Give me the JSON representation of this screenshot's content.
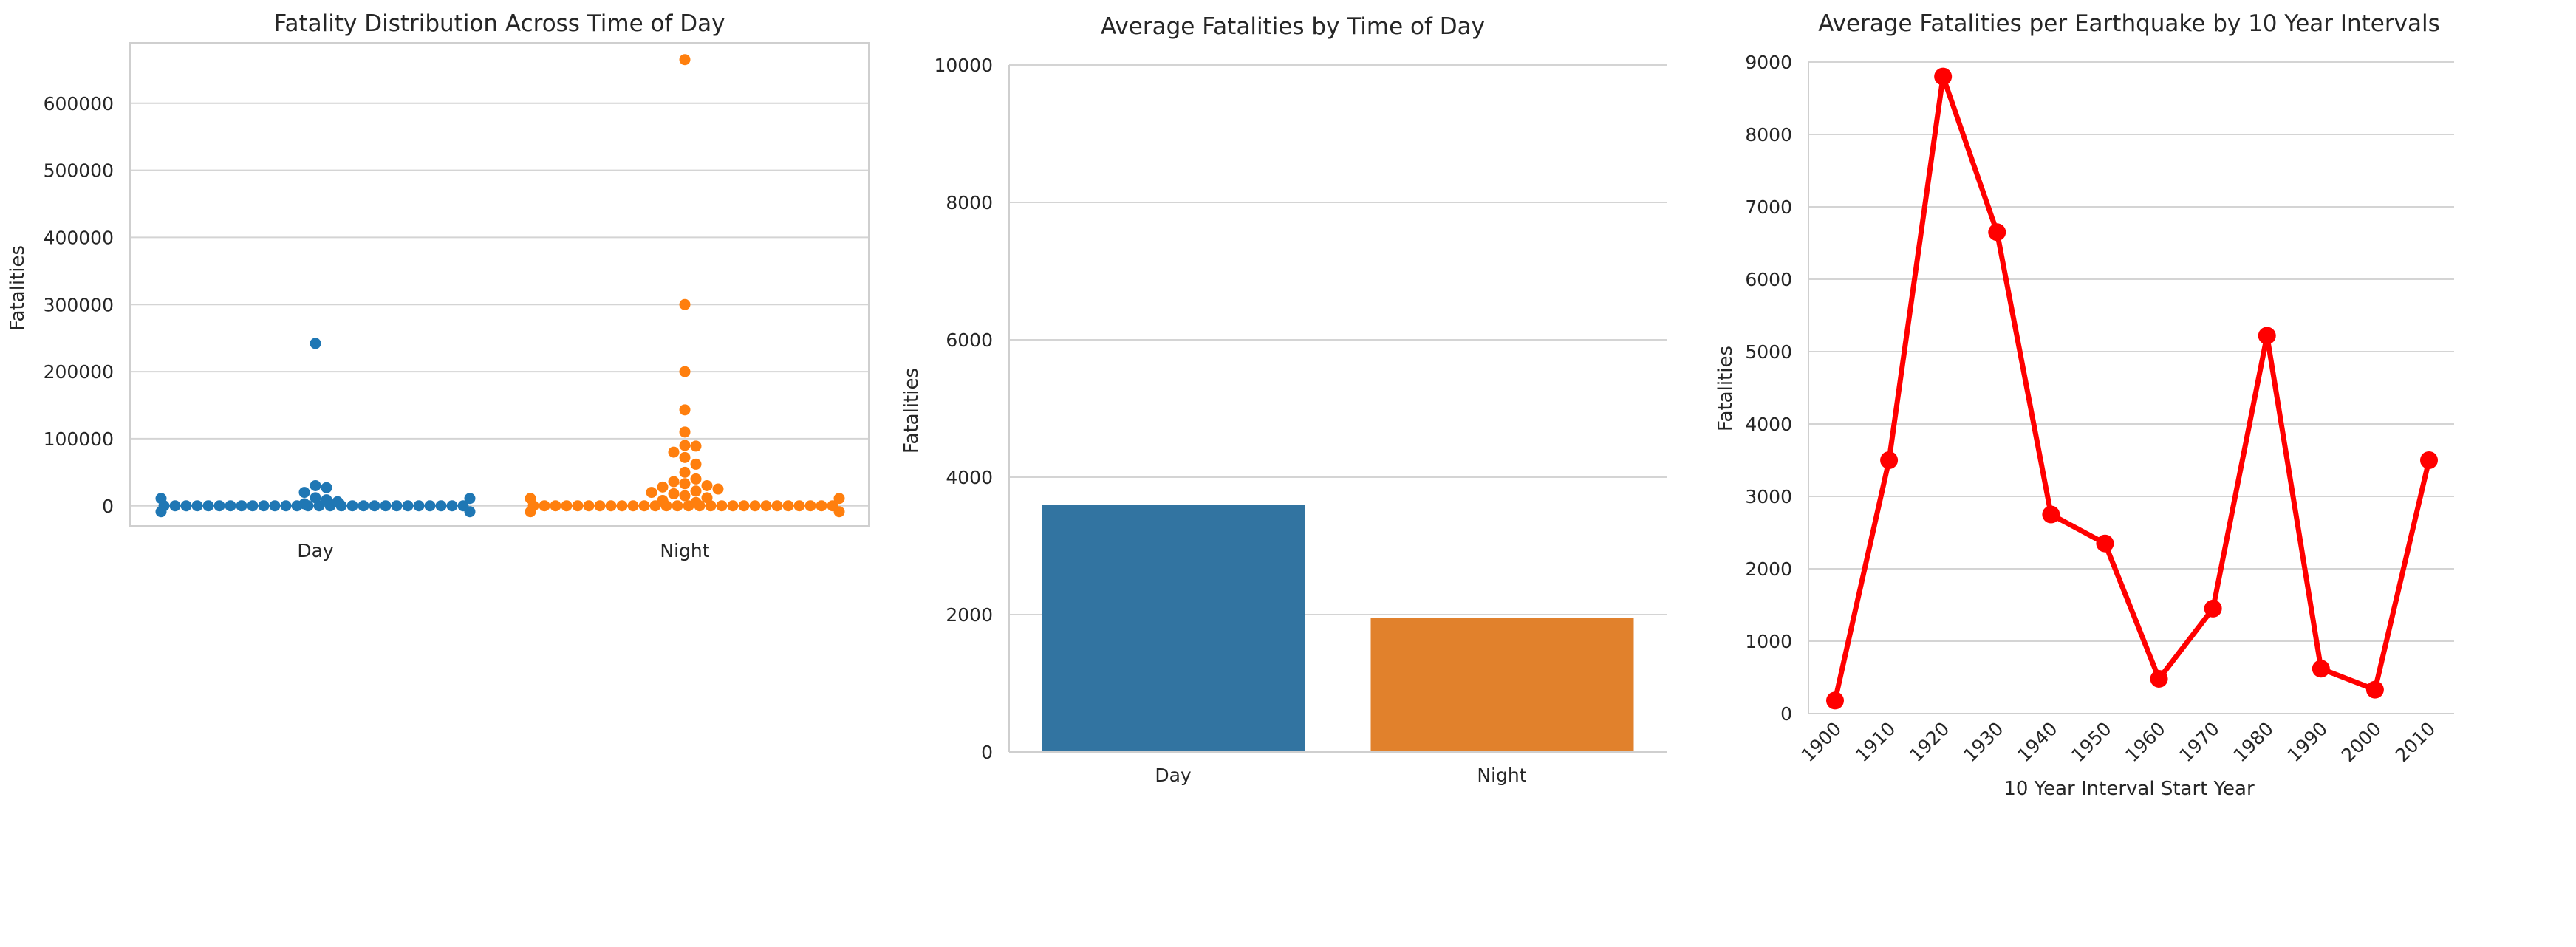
{
  "chart_data": [
    {
      "type": "scatter",
      "subtype": "swarm",
      "title": "Fatality Distribution Across Time of Day",
      "xlabel": "",
      "ylabel": "Fatalities",
      "categories": [
        "Day",
        "Night"
      ],
      "ylim": [
        -30000,
        690000
      ],
      "yticks": [
        0,
        100000,
        200000,
        300000,
        400000,
        500000,
        600000
      ],
      "ytick_labels": [
        "0",
        "100000",
        "200000",
        "300000",
        "400000",
        "500000",
        "600000"
      ],
      "grid": true,
      "colors": [
        "#1f77b4",
        "#ff7f0e"
      ],
      "series": [
        {
          "category": "Day",
          "notable_values": [
            242000,
            30000,
            27000,
            20000,
            12000,
            9000,
            6000,
            3000
          ]
        },
        {
          "category": "Night",
          "notable_values": [
            665000,
            300000,
            200000,
            143000,
            110000,
            90000,
            89000,
            80000,
            72000,
            62000,
            50000,
            40000,
            36000,
            33000,
            30000,
            28000,
            25000,
            22000,
            20000,
            18000,
            15000,
            12000,
            8000,
            5000
          ]
        }
      ]
    },
    {
      "type": "bar",
      "title": "Average Fatalities by Time of Day",
      "xlabel": "",
      "ylabel": "Fatalities",
      "categories": [
        "Day",
        "Night"
      ],
      "values": [
        3600,
        1950
      ],
      "ylim": [
        0,
        10000
      ],
      "yticks": [
        0,
        2000,
        4000,
        6000,
        8000,
        10000
      ],
      "ytick_labels": [
        "0",
        "2000",
        "4000",
        "6000",
        "8000",
        "10000"
      ],
      "grid": true,
      "colors": [
        "#3274a1",
        "#e1812c"
      ]
    },
    {
      "type": "line",
      "title": "Average Fatalities per Earthquake by 10 Year Intervals",
      "xlabel": "10 Year Interval Start Year",
      "ylabel": "Fatalities",
      "categories": [
        "1900",
        "1910",
        "1920",
        "1930",
        "1940",
        "1950",
        "1960",
        "1970",
        "1980",
        "1990",
        "2000",
        "2010"
      ],
      "values": [
        180,
        3500,
        8800,
        6650,
        2750,
        2350,
        480,
        1450,
        5220,
        620,
        330,
        3500
      ],
      "ylim": [
        0,
        9000
      ],
      "yticks": [
        0,
        1000,
        2000,
        3000,
        4000,
        5000,
        6000,
        7000,
        8000,
        9000
      ],
      "ytick_labels": [
        "0",
        "1000",
        "2000",
        "3000",
        "4000",
        "5000",
        "6000",
        "7000",
        "8000",
        "9000"
      ],
      "grid": true,
      "color": "#ff0000"
    }
  ]
}
